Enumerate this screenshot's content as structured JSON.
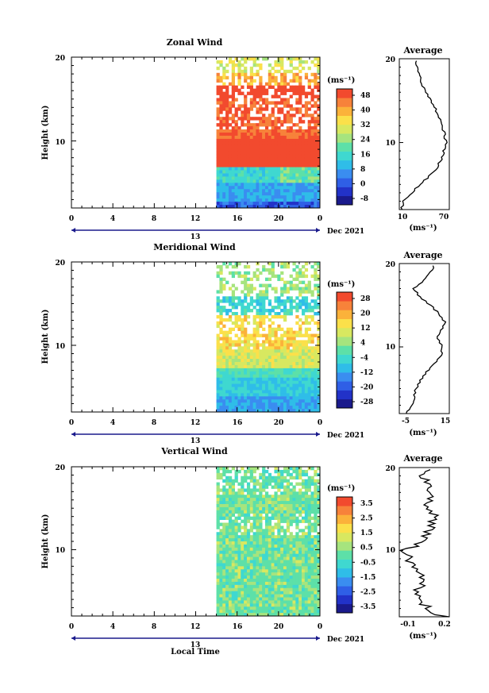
{
  "panels": [
    {
      "title": "Zonal Wind",
      "unit": "(ms⁻¹)",
      "colorbar_ticks": [
        "48",
        "40",
        "32",
        "24",
        "16",
        "8",
        "0",
        "-8"
      ],
      "profile_title": "Average",
      "profile_xticks": [
        "10",
        "70"
      ],
      "profile_xlabel": "(ms⁻¹)",
      "date_label": "Dec 2021",
      "day_label": "13",
      "show_xlabel": false
    },
    {
      "title": "Meridional Wind",
      "unit": "(ms⁻¹)",
      "colorbar_ticks": [
        "28",
        "20",
        "12",
        "4",
        "-4",
        "-12",
        "-20",
        "-28"
      ],
      "profile_title": "Average",
      "profile_xticks": [
        "-5",
        "15"
      ],
      "profile_xlabel": "(ms⁻¹)",
      "date_label": "Dec 2021",
      "day_label": "13",
      "show_xlabel": false
    },
    {
      "title": "Vertical Wind",
      "unit": "(ms⁻¹)",
      "colorbar_ticks": [
        "3.5",
        "2.5",
        "1.5",
        "0.5",
        "-0.5",
        "-1.5",
        "-2.5",
        "-3.5"
      ],
      "profile_title": "Average",
      "profile_xticks": [
        "-0.1",
        "0.2"
      ],
      "profile_xlabel": "(ms⁻¹)",
      "date_label": "Dec 2021",
      "day_label": "13",
      "show_xlabel": true
    }
  ],
  "y_axis_label": "Height (km)",
  "x_axis_label": "Local Time",
  "x_ticks": [
    "0",
    "4",
    "8",
    "12",
    "16",
    "20",
    "0"
  ],
  "y_ticks": [
    "20",
    "10"
  ],
  "palette": [
    "#1a1a8c",
    "#2232c8",
    "#2f5fe6",
    "#3a8df0",
    "#2fbde8",
    "#3fd8d0",
    "#5de0a8",
    "#a6e47e",
    "#d8e860",
    "#fbe04a",
    "#fbb23a",
    "#f7823a",
    "#f24a2e"
  ],
  "chart_data": [
    {
      "type": "heatmap",
      "title": "Zonal Wind",
      "xlabel": "",
      "ylabel": "Height (km)",
      "x_range_hours": [
        0,
        24
      ],
      "ylim": [
        2,
        20
      ],
      "data_start_hour": 14,
      "colorbar_range": [
        -8,
        48
      ],
      "profile": {
        "title": "Average",
        "xlim": [
          0,
          75
        ],
        "heights": [
          2,
          3,
          4,
          5,
          6,
          7,
          8,
          9,
          10,
          11,
          12,
          13,
          14,
          15,
          16,
          17,
          18,
          19,
          20
        ],
        "values": [
          3,
          6,
          18,
          32,
          45,
          56,
          63,
          67,
          70,
          68,
          64,
          60,
          54,
          48,
          40,
          34,
          30,
          26,
          24
        ]
      }
    },
    {
      "type": "heatmap",
      "title": "Meridional Wind",
      "xlabel": "",
      "ylabel": "Height (km)",
      "x_range_hours": [
        0,
        24
      ],
      "ylim": [
        2,
        20
      ],
      "data_start_hour": 14,
      "colorbar_range": [
        -28,
        28
      ],
      "profile": {
        "title": "Average",
        "xlim": [
          -7,
          17
        ],
        "heights": [
          2,
          3,
          4,
          5,
          6,
          7,
          8,
          9,
          10,
          11,
          12,
          13,
          14,
          15,
          16,
          17,
          18,
          19,
          20
        ],
        "values": [
          -4,
          -1,
          0,
          1,
          3,
          6,
          10,
          13,
          14,
          11,
          13,
          15,
          12,
          8,
          3,
          0,
          5,
          8,
          10
        ]
      }
    },
    {
      "type": "heatmap",
      "title": "Vertical Wind",
      "xlabel": "Local Time",
      "ylabel": "Height (km)",
      "x_range_hours": [
        0,
        24
      ],
      "ylim": [
        2,
        20
      ],
      "data_start_hour": 14,
      "colorbar_range": [
        -3.5,
        3.5
      ],
      "profile": {
        "title": "Average",
        "xlim": [
          -0.2,
          0.25
        ],
        "heights": [
          2,
          3,
          4,
          5,
          6,
          7,
          8,
          9,
          10,
          11,
          12,
          13,
          14,
          15,
          16,
          17,
          18,
          19,
          20
        ],
        "values": [
          0.2,
          0.05,
          0.0,
          -0.05,
          0.0,
          0.02,
          -0.08,
          -0.1,
          -0.15,
          0.0,
          0.05,
          0.1,
          0.12,
          0.05,
          0.08,
          0.1,
          0.05,
          0.0,
          0.05
        ]
      }
    }
  ]
}
